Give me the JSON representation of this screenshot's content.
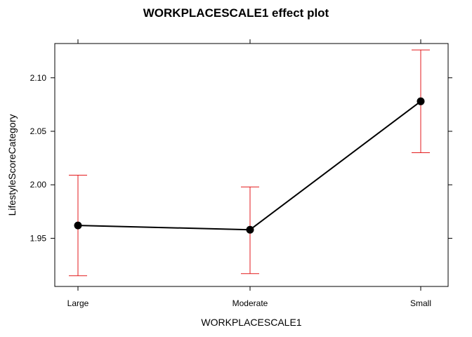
{
  "chart_data": {
    "type": "line",
    "title": "WORKPLACESCALE1 effect plot",
    "xlabel": "WORKPLACESCALE1",
    "ylabel": "LifestyleScoreCategory",
    "categories": [
      "Large",
      "Moderate",
      "Small"
    ],
    "series": [
      {
        "values": [
          1.962,
          1.958,
          2.078
        ],
        "lower": [
          1.915,
          1.917,
          2.03
        ],
        "upper": [
          2.009,
          1.998,
          2.126
        ]
      }
    ],
    "yticks": [
      "1.95",
      "2.00",
      "2.05",
      "2.10"
    ],
    "ylim": [
      1.905,
      2.132
    ],
    "grid": false,
    "colors": {
      "line": "#000000",
      "error_bars": "#e31a1c",
      "frame": "#000000"
    }
  }
}
